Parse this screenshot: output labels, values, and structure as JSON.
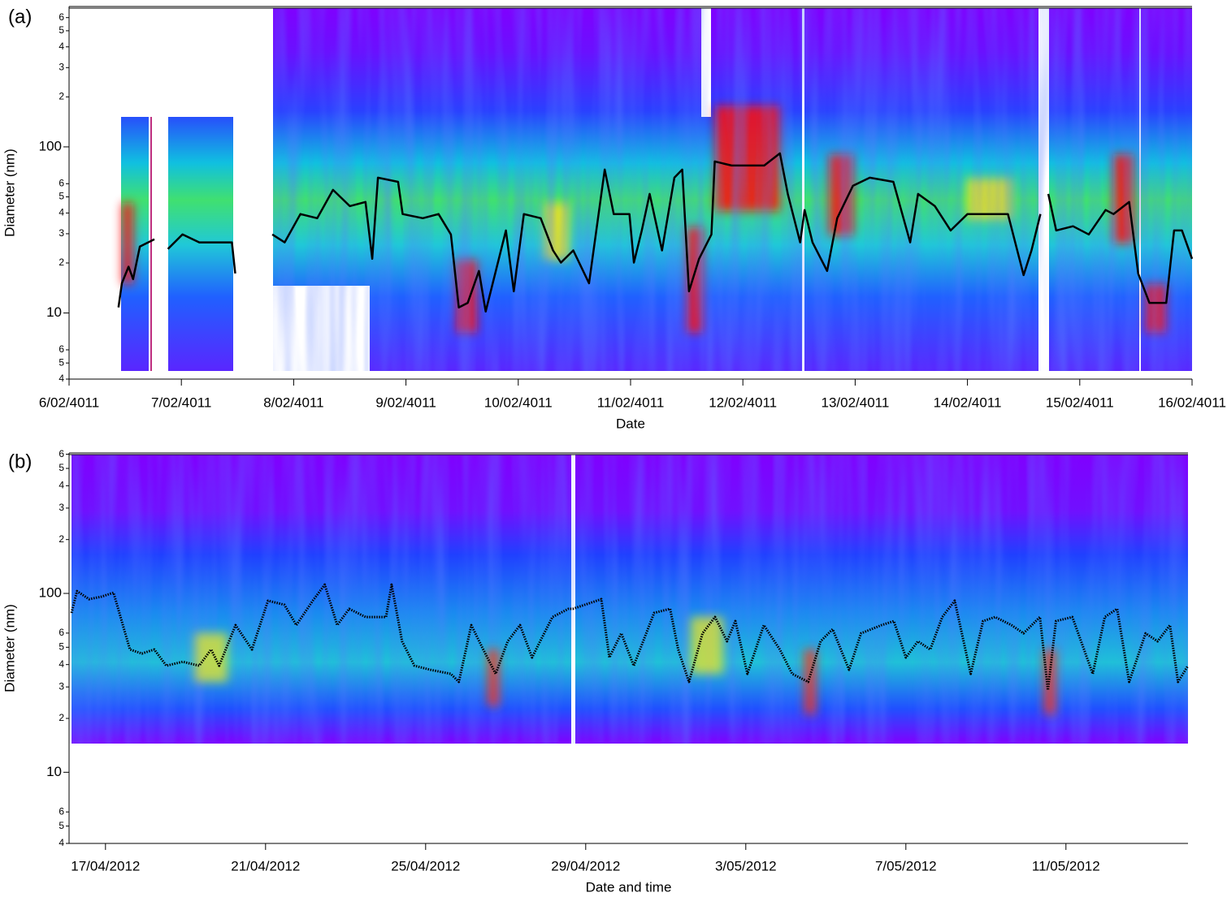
{
  "chart_data": [
    {
      "type": "line",
      "panel_label": "(a)",
      "xlabel": "Date",
      "ylabel": "Diameter (nm)",
      "ylog": true,
      "ylim": [
        4,
        700
      ],
      "yticks": [
        4,
        5,
        6,
        10,
        {
          "value": 20,
          "label": "2"
        },
        {
          "value": 30,
          "label": "3"
        },
        {
          "value": 40,
          "label": "4"
        },
        {
          "value": 50,
          "label": "5"
        },
        {
          "value": 60,
          "label": "6"
        },
        100,
        {
          "value": 200,
          "label": "2"
        },
        {
          "value": 300,
          "label": "3"
        },
        {
          "value": 400,
          "label": "4"
        },
        {
          "value": 500,
          "label": "5"
        },
        {
          "value": 600,
          "label": "6"
        }
      ],
      "xlim": [
        6,
        16
      ],
      "xticks": [
        {
          "value": 6,
          "label": "6/02/4011"
        },
        {
          "value": 7,
          "label": "7/02/4011"
        },
        {
          "value": 8,
          "label": "8/02/4011"
        },
        {
          "value": 9,
          "label": "9/02/4011"
        },
        {
          "value": 10,
          "label": "10/02/4011"
        },
        {
          "value": 11,
          "label": "11/02/4011"
        },
        {
          "value": 12,
          "label": "12/02/4011"
        },
        {
          "value": 13,
          "label": "13/02/4011"
        },
        {
          "value": 14,
          "label": "14/02/4011"
        },
        {
          "value": 15,
          "label": "15/02/4011"
        },
        {
          "value": 16,
          "label": "16/02/4011"
        }
      ],
      "color": "#000000",
      "line_style": "solid",
      "x": [
        6.44,
        6.47,
        6.53,
        6.57,
        6.63,
        6.76,
        null,
        6.88,
        7.01,
        7.16,
        7.34,
        7.45,
        7.48,
        null,
        7.81,
        7.92,
        8.06,
        8.21,
        8.35,
        8.5,
        8.64,
        8.7,
        8.75,
        8.93,
        8.97,
        9.15,
        9.29,
        9.4,
        9.47,
        9.55,
        9.65,
        9.71,
        9.89,
        9.96,
        10.05,
        10.2,
        10.31,
        10.38,
        10.49,
        10.63,
        10.77,
        10.85,
        10.99,
        11.03,
        11.1,
        11.17,
        11.28,
        11.39,
        11.46,
        11.52,
        11.61,
        11.72,
        11.75,
        11.9,
        12.04,
        12.19,
        12.33,
        12.4,
        12.51,
        12.55,
        12.62,
        12.75,
        12.84,
        12.98,
        13.13,
        13.34,
        13.49,
        13.56,
        13.71,
        13.85,
        14.0,
        14.14,
        14.36,
        14.5,
        14.57,
        14.65,
        null,
        14.72,
        14.79,
        14.94,
        15.08,
        15.23,
        15.3,
        15.44,
        15.52,
        15.62,
        15.77,
        15.84,
        15.91,
        16.0
      ],
      "values": [
        10.8,
        15.1,
        19.0,
        16.0,
        25.1,
        27.8,
        null,
        24.3,
        29.7,
        26.6,
        26.6,
        26.6,
        17.3,
        null,
        29.7,
        26.6,
        39.4,
        37.2,
        55.1,
        44.0,
        46.6,
        21.2,
        65.2,
        61.6,
        39.4,
        37.2,
        39.4,
        29.7,
        10.8,
        11.5,
        17.9,
        10.2,
        31.4,
        13.5,
        39.4,
        37.2,
        23.8,
        20.1,
        23.8,
        15.1,
        73.0,
        39.4,
        39.4,
        20.1,
        31.4,
        52.1,
        23.8,
        65.2,
        73.0,
        13.5,
        21.2,
        29.7,
        81.7,
        77.2,
        77.2,
        77.2,
        91.4,
        52.1,
        26.6,
        41.7,
        26.6,
        17.9,
        37.2,
        58.3,
        65.2,
        61.6,
        26.6,
        52.1,
        44.0,
        31.4,
        39.4,
        39.4,
        39.4,
        16.9,
        23.8,
        39.4,
        null,
        52.1,
        31.4,
        33.3,
        29.7,
        41.7,
        39.4,
        46.6,
        17.3,
        11.5,
        11.5,
        31.4,
        31.4,
        21.2
      ]
    },
    {
      "type": "line",
      "panel_label": "(b)",
      "xlabel": "Date and time",
      "ylabel": "Diameter (nm)",
      "ylog": true,
      "ylim": [
        4,
        610
      ],
      "yticks": [
        4,
        5,
        6,
        10,
        {
          "value": 20,
          "label": "2"
        },
        {
          "value": 30,
          "label": "3"
        },
        {
          "value": 40,
          "label": "4"
        },
        {
          "value": 50,
          "label": "5"
        },
        {
          "value": 60,
          "label": "6"
        },
        100,
        {
          "value": 200,
          "label": "2"
        },
        {
          "value": 300,
          "label": "3"
        },
        {
          "value": 400,
          "label": "4"
        },
        {
          "value": 500,
          "label": "5"
        },
        {
          "value": 600,
          "label": "6"
        }
      ],
      "xlim": [
        107.09,
        135.05
      ],
      "xticks": [
        {
          "value": 108,
          "label": "17/04/2012"
        },
        {
          "value": 112,
          "label": "21/04/2012"
        },
        {
          "value": 116,
          "label": "25/04/2012"
        },
        {
          "value": 120,
          "label": "29/04/2012"
        },
        {
          "value": 124,
          "label": "3/05/2012"
        },
        {
          "value": 128,
          "label": "7/05/2012"
        },
        {
          "value": 132,
          "label": "11/05/2012"
        }
      ],
      "color": "#000000",
      "line_style": "dotted",
      "x": [
        107.15,
        107.29,
        107.59,
        107.9,
        108.2,
        108.61,
        108.91,
        109.22,
        109.52,
        109.93,
        110.34,
        110.64,
        110.84,
        111.25,
        111.66,
        112.06,
        112.47,
        112.77,
        113.18,
        113.48,
        113.79,
        114.09,
        114.5,
        115.01,
        115.15,
        115.41,
        115.72,
        116.12,
        116.63,
        116.83,
        117.14,
        117.44,
        117.75,
        118.05,
        118.36,
        118.66,
        118.86,
        119.17,
        119.57,
        119.68,
        120.39,
        120.59,
        120.89,
        121.2,
        121.71,
        122.11,
        122.31,
        122.58,
        122.92,
        123.23,
        123.53,
        123.74,
        124.04,
        124.45,
        124.85,
        125.16,
        125.56,
        125.87,
        126.17,
        126.58,
        126.88,
        127.39,
        127.7,
        128.0,
        128.3,
        128.61,
        128.91,
        129.22,
        129.62,
        129.93,
        130.23,
        130.64,
        130.94,
        131.35,
        131.55,
        131.75,
        132.16,
        132.67,
        132.97,
        133.28,
        133.58,
        133.99,
        134.29,
        134.6,
        134.8,
        135.05
      ],
      "values": [
        77.8,
        103,
        92.9,
        95.9,
        101,
        48.6,
        46.1,
        48.6,
        39.4,
        41.5,
        39.4,
        48.6,
        39.4,
        66.5,
        48.6,
        91.0,
        86.4,
        66.5,
        91.0,
        112,
        66.5,
        82.0,
        73.8,
        73.8,
        112,
        54.0,
        39.4,
        37.4,
        35.5,
        32.0,
        66.5,
        48.6,
        35.5,
        54.0,
        66.5,
        43.8,
        54.0,
        73.8,
        82.0,
        82.0,
        92.9,
        43.8,
        59.8,
        39.4,
        77.8,
        82.0,
        48.6,
        32.0,
        59.8,
        73.8,
        54.0,
        70.0,
        35.5,
        66.5,
        48.6,
        35.5,
        32.0,
        54.0,
        63.1,
        37.4,
        59.8,
        66.5,
        70.0,
        43.8,
        54.0,
        48.6,
        73.8,
        91.0,
        35.5,
        70.0,
        73.8,
        66.5,
        59.8,
        73.8,
        28.8,
        70.0,
        73.8,
        35.5,
        73.8,
        82.0,
        32.0,
        59.8,
        54.0,
        66.5,
        32.0,
        39.4
      ]
    }
  ]
}
